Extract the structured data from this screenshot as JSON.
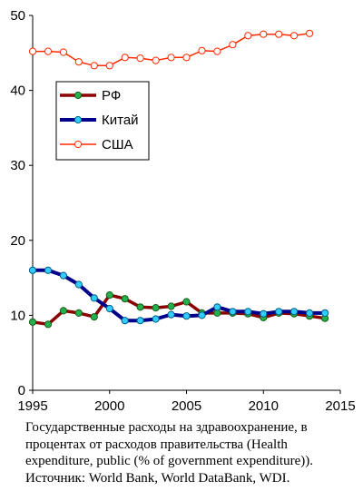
{
  "chart_data": {
    "type": "line",
    "x": [
      1995,
      1996,
      1997,
      1998,
      1999,
      2000,
      2001,
      2002,
      2003,
      2004,
      2005,
      2006,
      2007,
      2008,
      2009,
      2010,
      2011,
      2012,
      2013,
      2014
    ],
    "xlim": [
      1995,
      2015
    ],
    "ylim": [
      0,
      50
    ],
    "xticks": [
      "1995",
      "2000",
      "2005",
      "2010",
      "2015"
    ],
    "yticks": [
      "0",
      "10",
      "20",
      "30",
      "40",
      "50"
    ],
    "grid": false,
    "legend_position": "upper-left inside plot",
    "series": [
      {
        "name": "РФ",
        "line_color": "#8b0000",
        "marker_color": "#22b14c",
        "values": [
          9.1,
          8.8,
          10.6,
          10.3,
          9.8,
          12.7,
          12.2,
          11.1,
          11.0,
          11.2,
          11.8,
          10.3,
          10.3,
          10.3,
          10.2,
          9.7,
          10.3,
          10.2,
          9.9,
          9.6
        ]
      },
      {
        "name": "Китай",
        "line_color": "#00008b",
        "marker_color": "#33ccff",
        "values": [
          16.0,
          16.0,
          15.3,
          14.1,
          12.3,
          10.9,
          9.3,
          9.3,
          9.5,
          10.1,
          9.9,
          10.0,
          11.1,
          10.5,
          10.5,
          10.2,
          10.5,
          10.5,
          10.3,
          10.3
        ]
      },
      {
        "name": "США",
        "line_color": "#ff2a00",
        "marker_color": "#ffffff",
        "values": [
          45.2,
          45.2,
          45.1,
          43.8,
          43.3,
          43.3,
          44.4,
          44.3,
          44.0,
          44.4,
          44.4,
          45.3,
          45.2,
          46.1,
          47.3,
          47.5,
          47.5,
          47.3,
          47.6,
          null
        ]
      }
    ]
  },
  "caption": {
    "line1": "Государственные расходы на здравоохранение, в",
    "line2": "процентах от расходов правительства (Health",
    "line3": "expenditure, public (% of government expenditure)).",
    "line4": "Источник: World Bank, World DataBank, WDI."
  }
}
